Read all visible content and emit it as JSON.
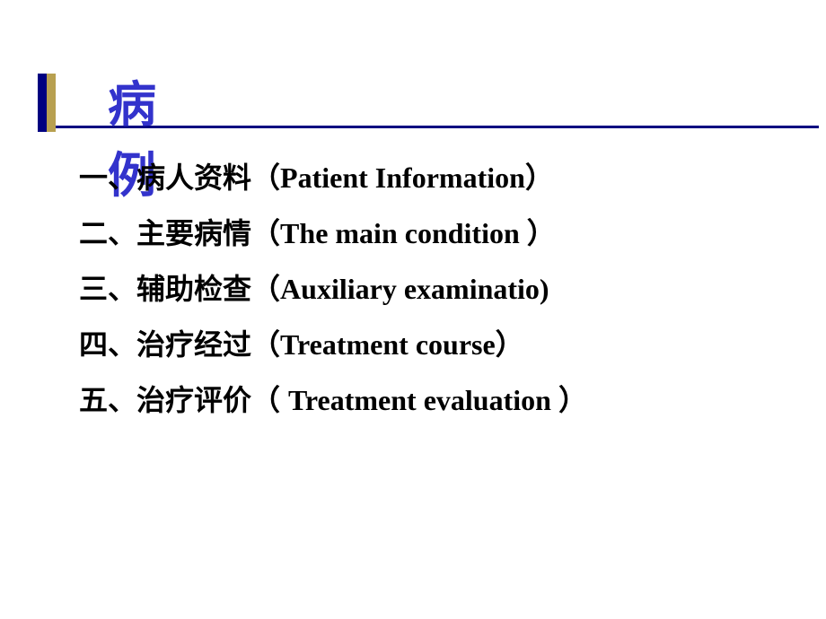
{
  "title": "病例",
  "colors": {
    "bar_left": "#000080",
    "bar_right": "#b8a050",
    "underline": "#000080",
    "title_text": "#3333cc",
    "body_text": "#000000",
    "background": "#ffffff"
  },
  "typography": {
    "title_fontsize": 54,
    "item_fontsize": 32,
    "title_weight": "bold",
    "item_weight": "bold"
  },
  "items": [
    {
      "num": "一、",
      "cn": "病人资料",
      "paren_open": "（",
      "en": "Patient Information",
      "paren_close": "）"
    },
    {
      "num": "二、",
      "cn": "主要病情",
      "paren_open": "（",
      "en": "The main condition ",
      "paren_close": "）"
    },
    {
      "num": "三、",
      "cn": "辅助检查",
      "paren_open": "（",
      "en": "Auxiliary examinatio)",
      "paren_close": ""
    },
    {
      "num": "四、",
      "cn": "治疗经过",
      "paren_open": "（",
      "en": "Treatment course",
      "paren_close": "）"
    },
    {
      "num": "五、",
      "cn": "治疗评价",
      "paren_open": "（ ",
      "en": "Treatment evaluation ",
      "paren_close": "）"
    }
  ]
}
